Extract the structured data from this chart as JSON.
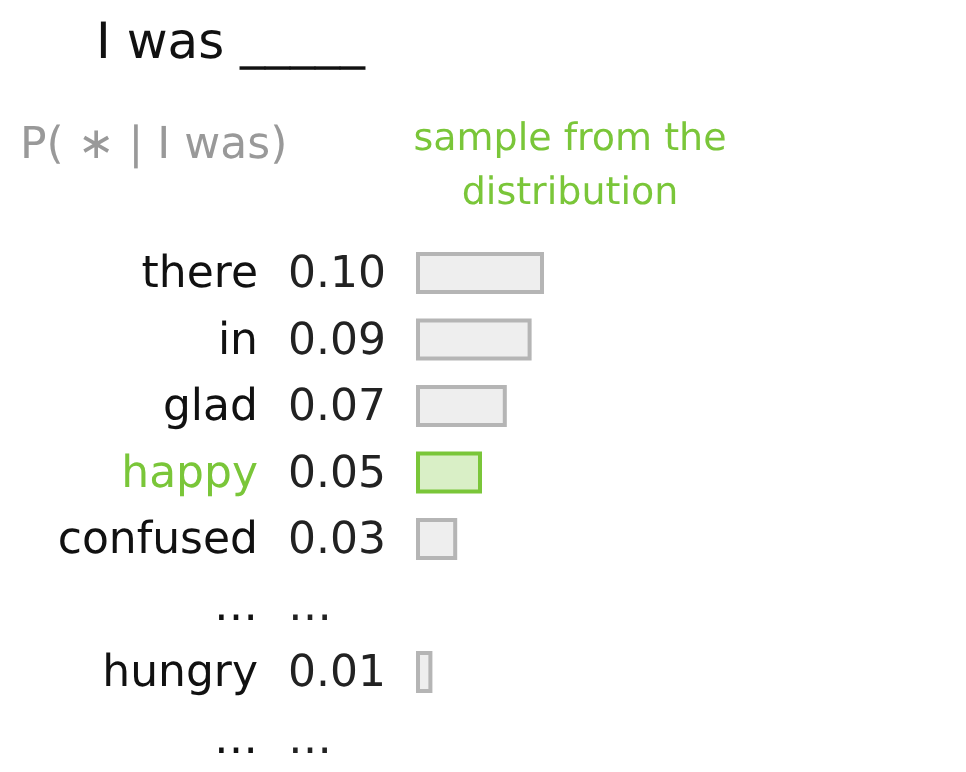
{
  "chart_data": {
    "type": "bar",
    "orientation": "horizontal",
    "title": "I was _____",
    "subtitle": "P( ∗ | I was)",
    "annotations": [
      "sample from the distribution"
    ],
    "categories": [
      "there",
      "in",
      "glad",
      "happy",
      "confused",
      "…",
      "hungry",
      "…"
    ],
    "values": [
      0.1,
      0.09,
      0.07,
      0.05,
      0.03,
      null,
      0.01,
      null
    ],
    "value_labels": [
      "0.10",
      "0.09",
      "0.07",
      "0.05",
      "0.03",
      "…",
      "0.01",
      "…"
    ],
    "colors": [
      "#eeeeee",
      "#eeeeee",
      "#eeeeee",
      "#d9efc6",
      "#eeeeee",
      "#eeeeee",
      "#eeeeee",
      "#eeeeee"
    ]
  }
}
